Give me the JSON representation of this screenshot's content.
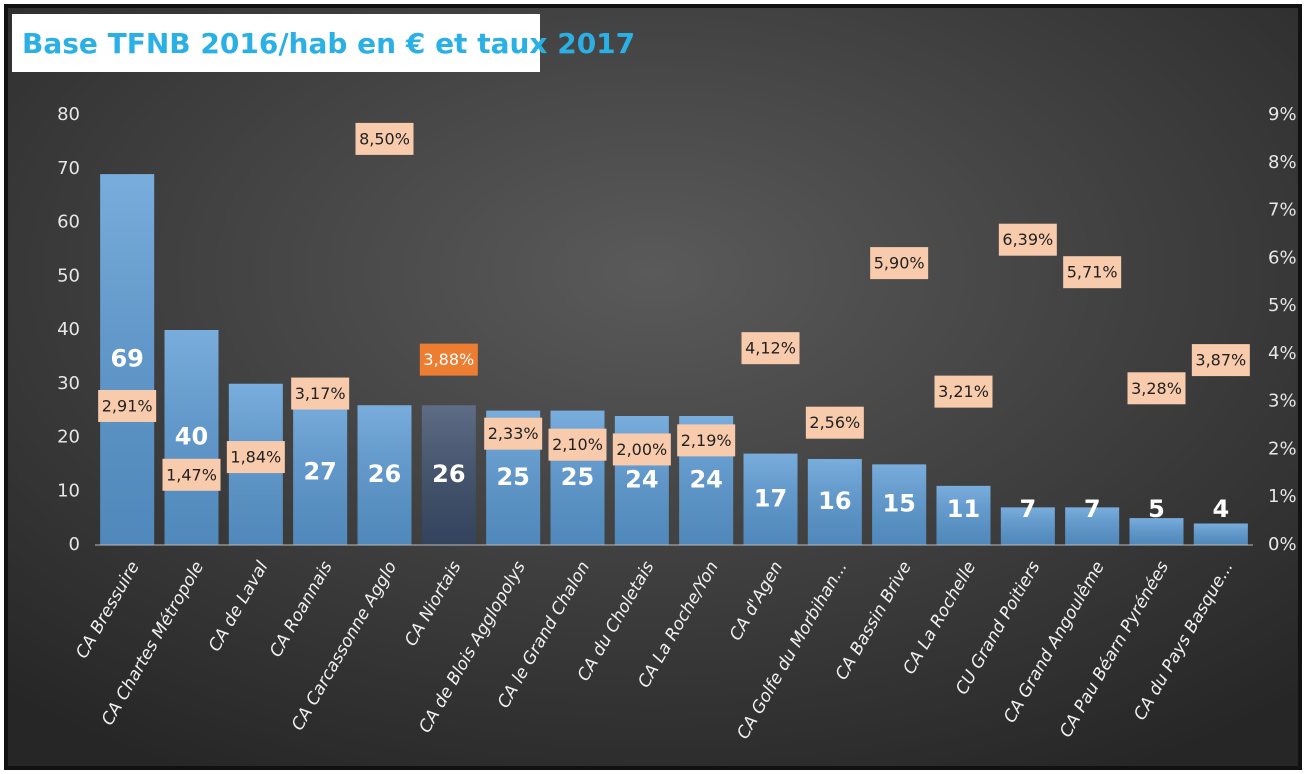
{
  "chart_data": {
    "type": "bar",
    "title": "Base TFNB 2016/hab en € et taux 2017",
    "categories": [
      "CA Bressuire",
      "CA Chartes Métropole",
      "CA de Laval",
      "CA Roannais",
      "CA Carcassonne Agglo",
      "CA Niortais",
      "CA de Blois Agglopolys",
      "CA le Grand Chalon",
      "CA du Choletais",
      "CA La Roche/Yon",
      "CA d'Agen",
      "CA Golfe du Morbihan...",
      "CA Bassin Brive",
      "CA La Rochelle",
      "CU Grand Poitiers",
      "CA Grand Angoulême",
      "CA Pau Béarn Pyrénées",
      "CA du Pays Basque..."
    ],
    "series": [
      {
        "values": [
          69,
          40,
          30,
          27,
          26,
          26,
          25,
          25,
          24,
          24,
          17,
          16,
          15,
          11,
          7,
          7,
          5,
          4
        ],
        "colors": [
          "#5b9bd5",
          "#5b9bd5",
          "#5b9bd5",
          "#5b9bd5",
          "#5b9bd5",
          "#3b4d6a",
          "#5b9bd5",
          "#5b9bd5",
          "#5b9bd5",
          "#5b9bd5",
          "#5b9bd5",
          "#5b9bd5",
          "#5b9bd5",
          "#5b9bd5",
          "#5b9bd5",
          "#5b9bd5",
          "#5b9bd5",
          "#5b9bd5"
        ]
      },
      {
        "axis": "y2",
        "values": [
          2.91,
          1.47,
          1.84,
          3.17,
          8.5,
          3.88,
          2.33,
          2.1,
          2.0,
          2.19,
          4.12,
          2.56,
          5.9,
          3.21,
          6.39,
          5.71,
          3.28,
          3.87
        ],
        "value_labels": [
          "2,91%",
          "1,47%",
          "1,84%",
          "3,17%",
          "8,50%",
          "3,88%",
          "2,33%",
          "2,10%",
          "2,00%",
          "2,19%",
          "4,12%",
          "2,56%",
          "5,90%",
          "3,21%",
          "6,39%",
          "5,71%",
          "3,28%",
          "3,87%"
        ],
        "colors": [
          "#f8cbad",
          "#f8cbad",
          "#f8cbad",
          "#f8cbad",
          "#f8cbad",
          "#ed7d31",
          "#f8cbad",
          "#f8cbad",
          "#f8cbad",
          "#f8cbad",
          "#f8cbad",
          "#f8cbad",
          "#f8cbad",
          "#f8cbad",
          "#f8cbad",
          "#f8cbad",
          "#f8cbad",
          "#f8cbad"
        ],
        "text_colors": [
          "#222222",
          "#222222",
          "#222222",
          "#222222",
          "#222222",
          "#ffffff",
          "#222222",
          "#222222",
          "#222222",
          "#222222",
          "#222222",
          "#222222",
          "#222222",
          "#222222",
          "#222222",
          "#222222",
          "#222222",
          "#222222"
        ]
      }
    ],
    "ylim": [
      0,
      80
    ],
    "yticks": [
      0,
      10,
      20,
      30,
      40,
      50,
      60,
      70,
      80
    ],
    "y2lim": [
      0,
      9
    ],
    "y2ticks": [
      {
        "value": 0,
        "label": "0%"
      },
      {
        "value": 1,
        "label": "1%"
      },
      {
        "value": 2,
        "label": "2%"
      },
      {
        "value": 3,
        "label": "3%"
      },
      {
        "value": 4,
        "label": "4%"
      },
      {
        "value": 5,
        "label": "5%"
      },
      {
        "value": 6,
        "label": "6%"
      },
      {
        "value": 7,
        "label": "7%"
      },
      {
        "value": 8,
        "label": "8%"
      },
      {
        "value": 9,
        "label": "9%"
      }
    ]
  }
}
